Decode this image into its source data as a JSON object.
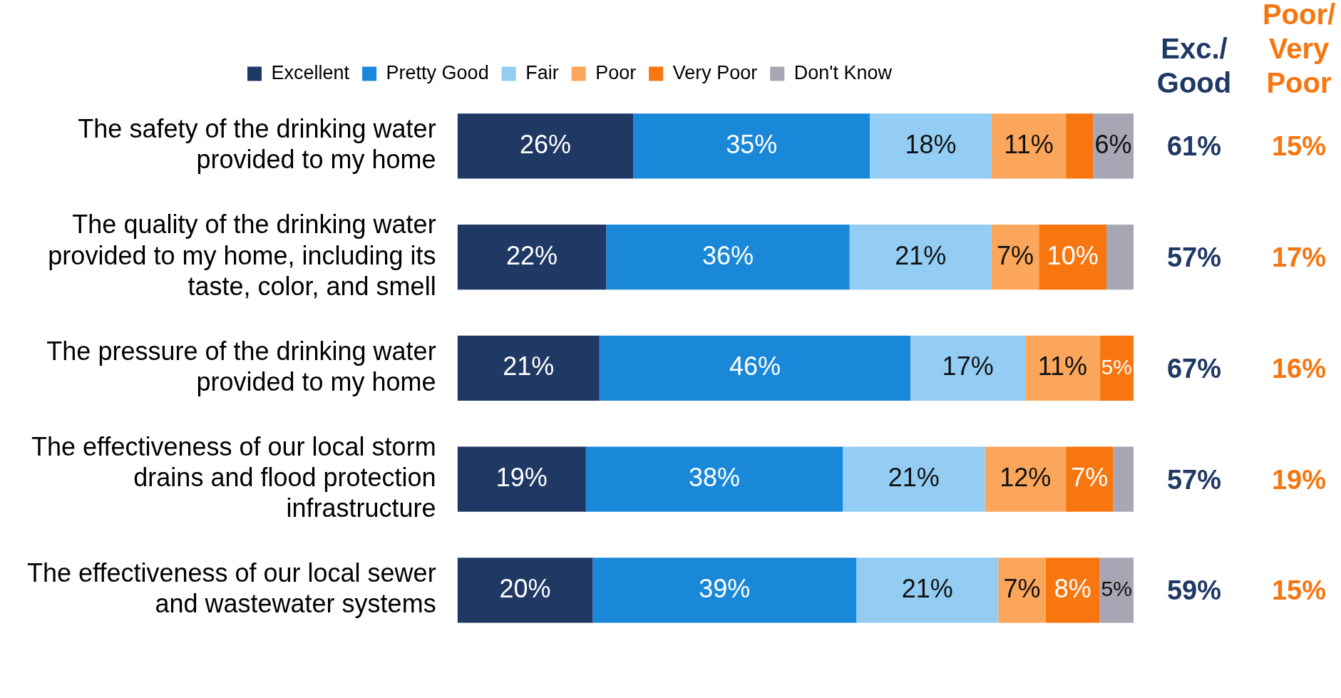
{
  "chart_data": {
    "type": "bar",
    "orientation": "horizontal",
    "stacked": true,
    "legend": "top",
    "tick_labels": "y",
    "xlim": [
      0,
      100
    ],
    "categories": [
      "The safety of the drinking water provided to my home",
      "The quality of the drinking water provided to my home, including its taste, color, and smell",
      "The pressure of the drinking water provided to my home",
      "The effectiveness of our local storm drains and flood protection infrastructure",
      "The effectiveness of our local sewer and wastewater systems"
    ],
    "series": [
      {
        "name": "Excellent",
        "color": "#1f3864",
        "values": [
          26,
          22,
          21,
          19,
          20
        ],
        "value_labels": [
          "26%",
          "22%",
          "21%",
          "19%",
          "20%"
        ]
      },
      {
        "name": "Pretty Good",
        "color": "#1a88d8",
        "values": [
          35,
          36,
          46,
          38,
          39
        ],
        "value_labels": [
          "35%",
          "36%",
          "46%",
          "38%",
          "39%"
        ]
      },
      {
        "name": "Fair",
        "color": "#93cdf3",
        "values": [
          18,
          21,
          17,
          21,
          21
        ],
        "value_labels": [
          "18%",
          "21%",
          "17%",
          "21%",
          "21%"
        ]
      },
      {
        "name": "Poor",
        "color": "#fba65a",
        "values": [
          11,
          7,
          11,
          12,
          7
        ],
        "value_labels": [
          "11%",
          "7%",
          "11%",
          "12%",
          "7%"
        ]
      },
      {
        "name": "Very Poor",
        "color": "#f7760f",
        "values": [
          4,
          10,
          5,
          7,
          8
        ],
        "value_labels": [
          null,
          "10%",
          "5%",
          "7%",
          "8%"
        ]
      },
      {
        "name": "Don't Know",
        "color": "#a6a6b4",
        "values": [
          6,
          4,
          0,
          3,
          5
        ],
        "value_labels": [
          "6%",
          null,
          null,
          null,
          "5%"
        ]
      }
    ],
    "annotations": [
      "Exc./ Good",
      "61%",
      "57%",
      "67%",
      "57%",
      "59%",
      "Poor/ Very Poor",
      "15%",
      "17%",
      "16%",
      "19%",
      "15%"
    ]
  }
}
